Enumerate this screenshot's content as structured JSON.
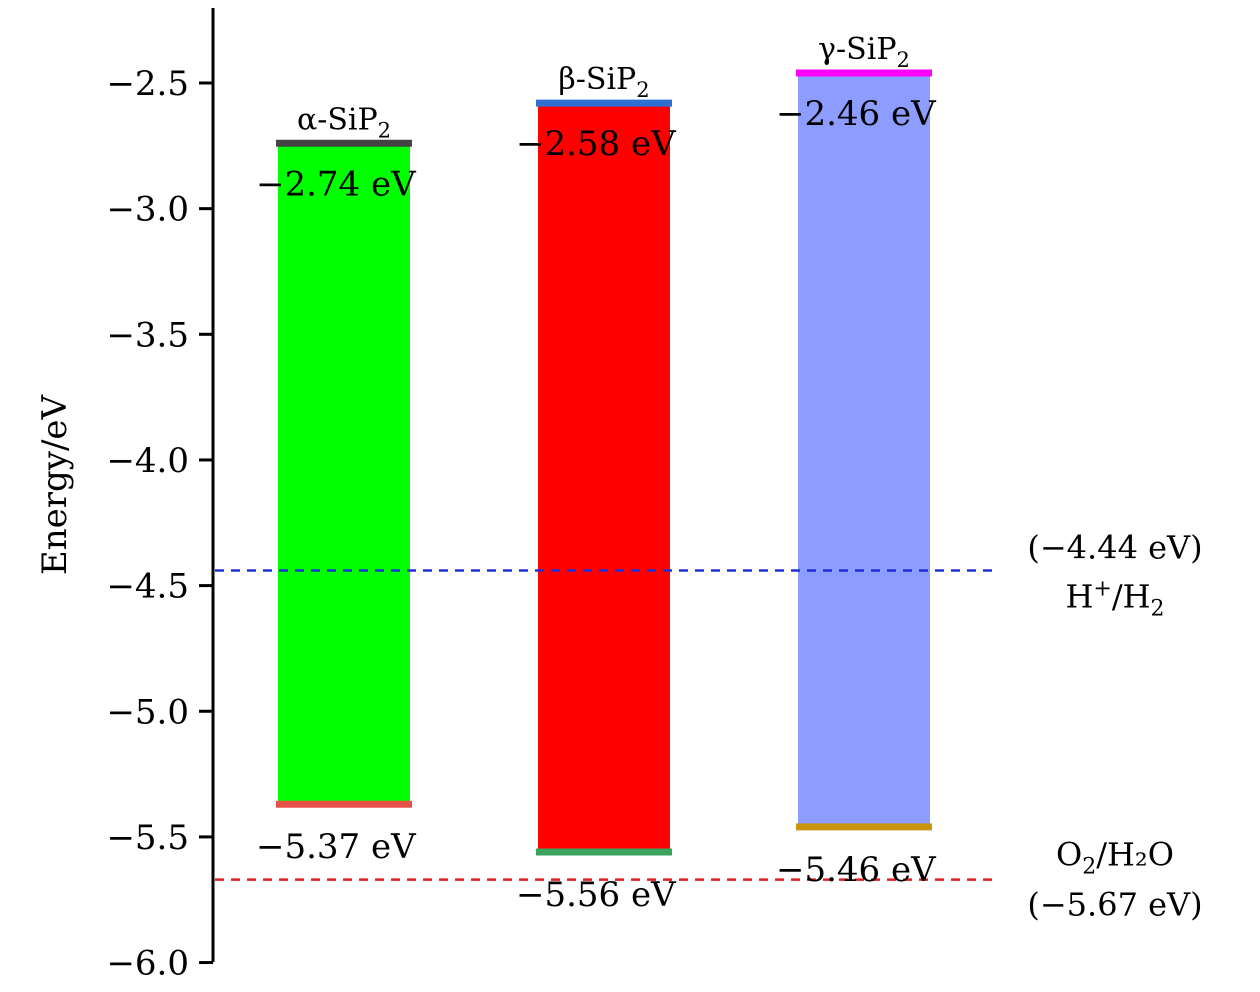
{
  "chart_data": {
    "type": "bar",
    "ylabel": "Energy/eV",
    "ylim": [
      -6.0,
      -2.25
    ],
    "yticks": [
      "−2.5",
      "−3.0",
      "−3.5",
      "−4.0",
      "−4.5",
      "−5.0",
      "−5.5",
      "−6.0"
    ],
    "ytick_values": [
      -2.5,
      -3.0,
      -3.5,
      -4.0,
      -4.5,
      -5.0,
      -5.5,
      -6.0
    ],
    "grid": false,
    "bars": [
      {
        "name": "α-SiP",
        "sub": "2",
        "cbm": -2.74,
        "vbm": -5.37,
        "cbm_label": "−2.74 eV",
        "vbm_label": "−5.37 eV",
        "fill": "#00ff00",
        "cbm_color": "#444444",
        "vbm_color": "#e8504a"
      },
      {
        "name": "β-SiP",
        "sub": "2",
        "cbm": -2.58,
        "vbm": -5.56,
        "cbm_label": "−2.58 eV",
        "vbm_label": "−5.56 eV",
        "fill": "#ff0000",
        "cbm_color": "#2f6fd0",
        "vbm_color": "#3aa35e"
      },
      {
        "name": "γ-SiP",
        "sub": "2",
        "cbm": -2.46,
        "vbm": -5.46,
        "cbm_label": "−2.46 eV",
        "vbm_label": "−5.46 eV",
        "fill": "#8c9cff",
        "cbm_color": "#ff00ff",
        "vbm_color": "#c9950c"
      }
    ],
    "reference_lines": [
      {
        "value": -4.44,
        "color": "#1f2fd6",
        "value_label": "(−4.44 eV)",
        "label_main": "H",
        "label_sup": "+",
        "label_mid": "/H",
        "label_sub": "2",
        "label_tail": ""
      },
      {
        "value": -5.67,
        "color": "#e02020",
        "value_label": "(−5.67 eV)",
        "label_main": "O",
        "label_sup": "",
        "label_mid": "",
        "label_sub": "2",
        "label_tail": "/H₂O"
      }
    ]
  }
}
